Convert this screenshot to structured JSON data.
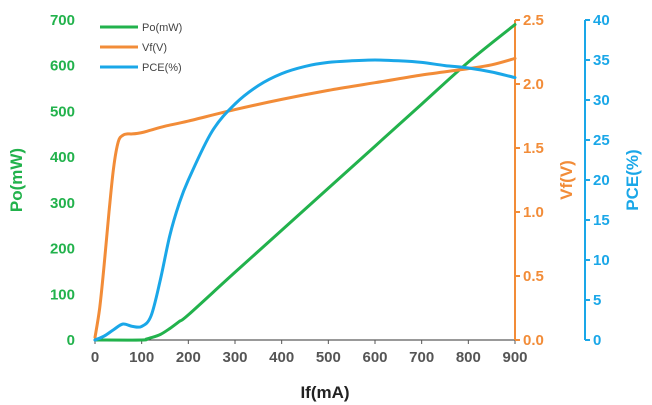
{
  "chart_data": {
    "type": "line",
    "xlabel": "If(mA)",
    "ylabel_left": "Po(mW)",
    "ylabel_right1": "Vf(V)",
    "ylabel_right2": "PCE(%)",
    "xlim": [
      0,
      900
    ],
    "x_ticks": [
      "0",
      "100",
      "200",
      "300",
      "400",
      "500",
      "600",
      "700",
      "800",
      "900"
    ],
    "left_ylim": [
      0,
      700
    ],
    "left_ticks": [
      "0",
      "100",
      "200",
      "300",
      "400",
      "500",
      "600",
      "700"
    ],
    "right1_ylim": [
      0,
      2.5
    ],
    "right1_ticks": [
      "0.0",
      "0.5",
      "1.0",
      "1.5",
      "2.0",
      "2.5"
    ],
    "right2_ylim": [
      0,
      40
    ],
    "right2_ticks": [
      "0",
      "5",
      "10",
      "15",
      "20",
      "25",
      "30",
      "35",
      "40"
    ],
    "grid": false,
    "legend_position": "top-left",
    "colors": {
      "po": "#22b24c",
      "vf": "#f28c38",
      "pce": "#1aa7e8",
      "axis_left": "#22b24c",
      "axis_right1": "#f28c38",
      "axis_right2": "#1aa7e8",
      "axis_bottom": "#333333"
    },
    "series": [
      {
        "name": "Po(mW)",
        "axis": "left",
        "x": [
          0,
          100,
          110,
          120,
          140,
          160,
          180,
          200,
          300,
          400,
          500,
          600,
          700,
          800,
          900
        ],
        "y": [
          0,
          0,
          2,
          5,
          12,
          25,
          40,
          55,
          148,
          240,
          332,
          424,
          516,
          608,
          690
        ]
      },
      {
        "name": "Vf(V)",
        "axis": "right1",
        "x": [
          0,
          10,
          20,
          30,
          40,
          50,
          60,
          70,
          80,
          100,
          120,
          150,
          200,
          300,
          400,
          500,
          600,
          700,
          800,
          850,
          900
        ],
        "y": [
          0.02,
          0.25,
          0.6,
          1.0,
          1.35,
          1.55,
          1.6,
          1.61,
          1.61,
          1.62,
          1.64,
          1.67,
          1.71,
          1.8,
          1.88,
          1.95,
          2.01,
          2.07,
          2.12,
          2.15,
          2.2
        ]
      },
      {
        "name": "PCE(%)",
        "axis": "right2",
        "x": [
          0,
          20,
          40,
          60,
          80,
          100,
          120,
          140,
          160,
          180,
          200,
          250,
          300,
          350,
          400,
          450,
          500,
          550,
          600,
          650,
          700,
          750,
          800,
          850,
          900
        ],
        "y": [
          0,
          0.5,
          1.3,
          2.0,
          1.7,
          1.7,
          3.0,
          7.5,
          13,
          17,
          20,
          26,
          29.5,
          31.8,
          33.3,
          34.2,
          34.7,
          34.9,
          35.0,
          34.9,
          34.7,
          34.3,
          34.0,
          33.5,
          32.8
        ]
      }
    ]
  }
}
